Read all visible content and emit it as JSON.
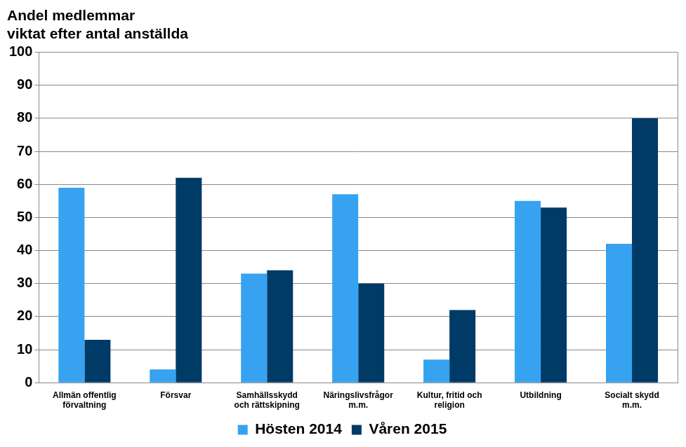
{
  "chart_data": {
    "type": "bar",
    "title": [
      "Andel medlemmar",
      "viktat efter antal anställda"
    ],
    "categories": [
      [
        "Allmän offentlig",
        "förvaltning"
      ],
      "Försvar",
      [
        "Samhällsskydd",
        "och rättskipning"
      ],
      [
        "Näringslivsfrågor",
        "m.m."
      ],
      [
        "Kultur, fritid och",
        "religion"
      ],
      "Utbildning",
      [
        "Socialt skydd",
        "m.m."
      ]
    ],
    "series": [
      {
        "name": "Hösten 2014",
        "color": "#36a2f0",
        "values": [
          59,
          4,
          33,
          57,
          7,
          55,
          42
        ]
      },
      {
        "name": "Våren 2015",
        "color": "#003a66",
        "values": [
          13,
          62,
          34,
          30,
          22,
          53,
          80
        ]
      }
    ],
    "ylim": [
      0,
      100
    ],
    "yticks": [
      0,
      10,
      20,
      30,
      40,
      50,
      60,
      70,
      80,
      90,
      100
    ],
    "grid": true,
    "legend": "bottom"
  }
}
